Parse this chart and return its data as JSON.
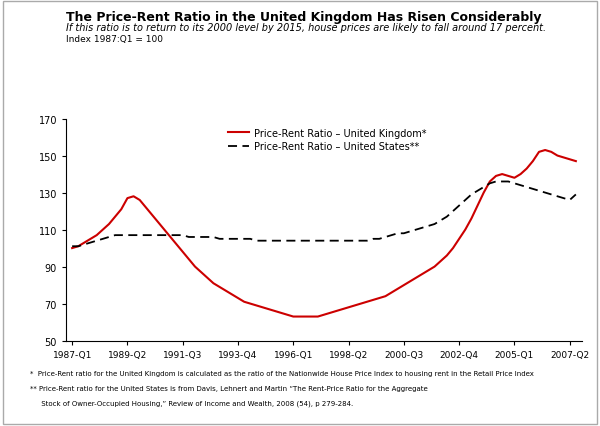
{
  "title": "The Price-Rent Ratio in the United Kingdom Has Risen Considerably",
  "subtitle": "If this ratio is to return to its 2000 level by 2015, house prices are likely to fall around 17 percent.",
  "index_label": "Index 1987:Q1 = 100",
  "ylim": [
    50,
    170
  ],
  "yticks": [
    50,
    70,
    90,
    110,
    130,
    150,
    170
  ],
  "xtick_labels": [
    "1987-Q1",
    "1989-Q2",
    "1991-Q3",
    "1993-Q4",
    "1996-Q1",
    "1998-Q2",
    "2000-Q3",
    "2002-Q4",
    "2005-Q1",
    "2007-Q2"
  ],
  "uk_label": "Price-Rent Ratio – United Kingdom*",
  "us_label": "Price-Rent Ratio – United States**",
  "uk_color": "#cc0000",
  "us_color": "#000000",
  "footnote1": "*  Price-Rent ratio for the United Kingdom is calculated as the ratio of the Nationwide House Price Index to housing rent in the Retail Price Index",
  "footnote2": "** Price-Rent ratio for the United States is from Davis, Lehnert and Martin “The Rent-Price Ratio for the Aggregate",
  "footnote3": "     Stock of Owner-Occupied Housing,” Review of Income and Wealth, 2008 (54), p 279-284.",
  "uk_x": [
    0,
    1,
    2,
    3,
    4,
    5,
    6,
    7,
    8,
    9,
    10,
    11,
    12,
    13,
    14,
    15,
    16,
    17,
    18,
    19,
    20,
    21,
    22,
    23,
    24,
    25,
    26,
    27,
    28,
    29,
    30,
    31,
    32,
    33,
    34,
    35,
    36,
    37,
    38,
    39,
    40,
    41,
    42,
    43,
    44,
    45,
    46,
    47,
    48,
    49,
    50,
    51,
    52,
    53,
    54,
    55,
    56,
    57,
    58,
    59,
    60,
    61,
    62,
    63,
    64,
    65,
    66,
    67,
    68,
    69,
    70,
    71,
    72,
    73,
    74,
    75,
    76,
    77,
    78,
    79,
    80,
    81,
    82
  ],
  "uk_y": [
    100,
    101,
    103,
    105,
    107,
    110,
    113,
    117,
    121,
    127,
    128,
    126,
    122,
    118,
    114,
    110,
    106,
    102,
    98,
    94,
    90,
    87,
    84,
    81,
    79,
    77,
    75,
    73,
    71,
    70,
    69,
    68,
    67,
    66,
    65,
    64,
    63,
    63,
    63,
    63,
    63,
    64,
    65,
    66,
    67,
    68,
    69,
    70,
    71,
    72,
    73,
    74,
    76,
    78,
    80,
    82,
    84,
    86,
    88,
    90,
    93,
    96,
    100,
    105,
    110,
    116,
    123,
    130,
    136,
    139,
    140,
    139,
    138,
    140,
    143,
    147,
    152,
    153,
    152,
    150,
    149,
    148,
    147
  ],
  "us_x": [
    0,
    1,
    2,
    3,
    4,
    5,
    6,
    7,
    8,
    9,
    10,
    11,
    12,
    13,
    14,
    15,
    16,
    17,
    18,
    19,
    20,
    21,
    22,
    23,
    24,
    25,
    26,
    27,
    28,
    29,
    30,
    31,
    32,
    33,
    34,
    35,
    36,
    37,
    38,
    39,
    40,
    41,
    42,
    43,
    44,
    45,
    46,
    47,
    48,
    49,
    50,
    51,
    52,
    53,
    54,
    55,
    56,
    57,
    58,
    59,
    60,
    61,
    62,
    63,
    64,
    65,
    66,
    67,
    68,
    69,
    70,
    71,
    72,
    73,
    74,
    75,
    76,
    77,
    78,
    79,
    80,
    81,
    82
  ],
  "us_y": [
    101,
    101,
    102,
    103,
    104,
    105,
    106,
    107,
    107,
    107,
    107,
    107,
    107,
    107,
    107,
    107,
    107,
    107,
    107,
    106,
    106,
    106,
    106,
    106,
    105,
    105,
    105,
    105,
    105,
    105,
    104,
    104,
    104,
    104,
    104,
    104,
    104,
    104,
    104,
    104,
    104,
    104,
    104,
    104,
    104,
    104,
    104,
    104,
    104,
    105,
    105,
    106,
    107,
    108,
    108,
    109,
    110,
    111,
    112,
    113,
    115,
    117,
    120,
    123,
    126,
    129,
    131,
    133,
    135,
    136,
    136,
    136,
    135,
    134,
    133,
    132,
    131,
    130,
    129,
    128,
    127,
    126,
    129
  ]
}
